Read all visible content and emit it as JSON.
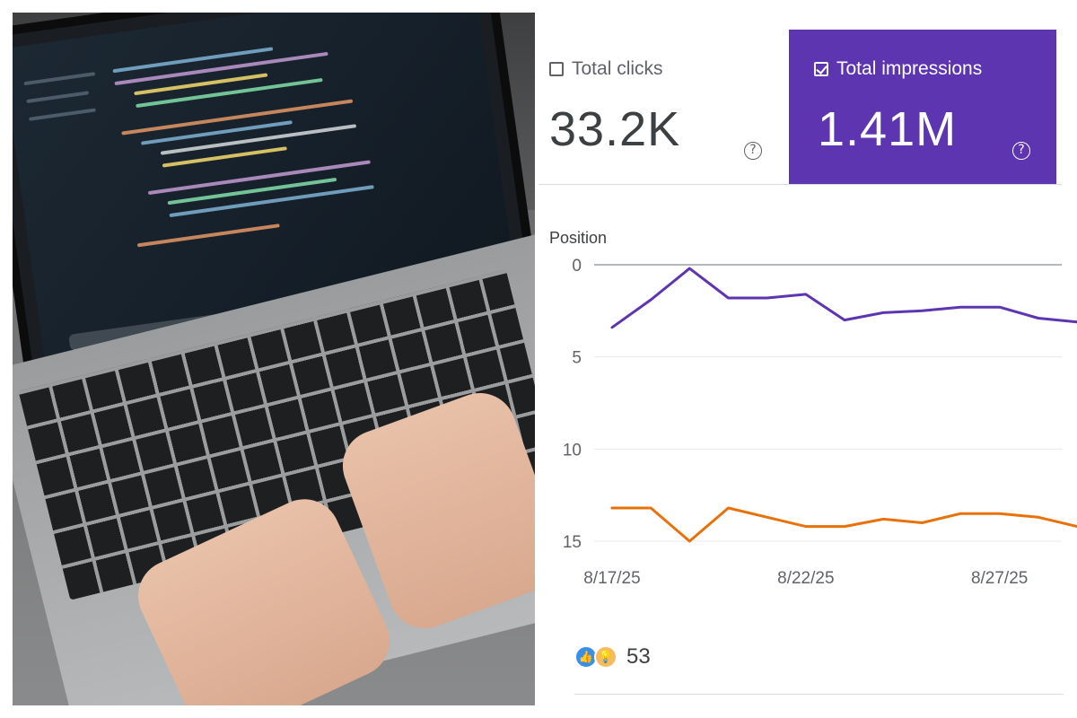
{
  "photo": {
    "description_icon": "laptop-photo",
    "screen_accent": "#ff7a45"
  },
  "metrics": {
    "clicks": {
      "label": "Total clicks",
      "value": "33.2K",
      "checked": false
    },
    "impressions": {
      "label": "Total impressions",
      "value": "1.41M",
      "checked": true,
      "color": "#5e35b1"
    },
    "help_glyph": "?"
  },
  "chart": {
    "axis_title": "Position"
  },
  "chart_data": {
    "type": "line",
    "ylabel": "Position",
    "y_inverted": true,
    "ylim": [
      0,
      15
    ],
    "y_ticks": [
      "0",
      "5",
      "10",
      "15"
    ],
    "x_ticks": [
      "8/17/25",
      "8/22/25",
      "8/27/25"
    ],
    "x": [
      "8/17/25",
      "8/18/25",
      "8/19/25",
      "8/20/25",
      "8/21/25",
      "8/22/25",
      "8/23/25",
      "8/24/25",
      "8/25/25",
      "8/26/25",
      "8/27/25",
      "8/28/25",
      "8/29/25"
    ],
    "series": [
      {
        "color": "#5e35b1",
        "values": [
          3.4,
          1.9,
          0.2,
          1.8,
          1.8,
          1.6,
          3.0,
          2.6,
          2.5,
          2.3,
          2.3,
          2.9,
          3.1
        ]
      },
      {
        "color": "#e8710a",
        "values": [
          13.2,
          13.2,
          15.0,
          13.2,
          13.7,
          14.2,
          14.2,
          13.8,
          14.0,
          13.5,
          13.5,
          13.7,
          14.2
        ]
      }
    ],
    "grid": true
  },
  "reactions": {
    "count": "53",
    "icons": [
      "thumbs-up-icon",
      "lightbulb-icon"
    ],
    "like_glyph": "👍",
    "idea_glyph": "💡"
  }
}
